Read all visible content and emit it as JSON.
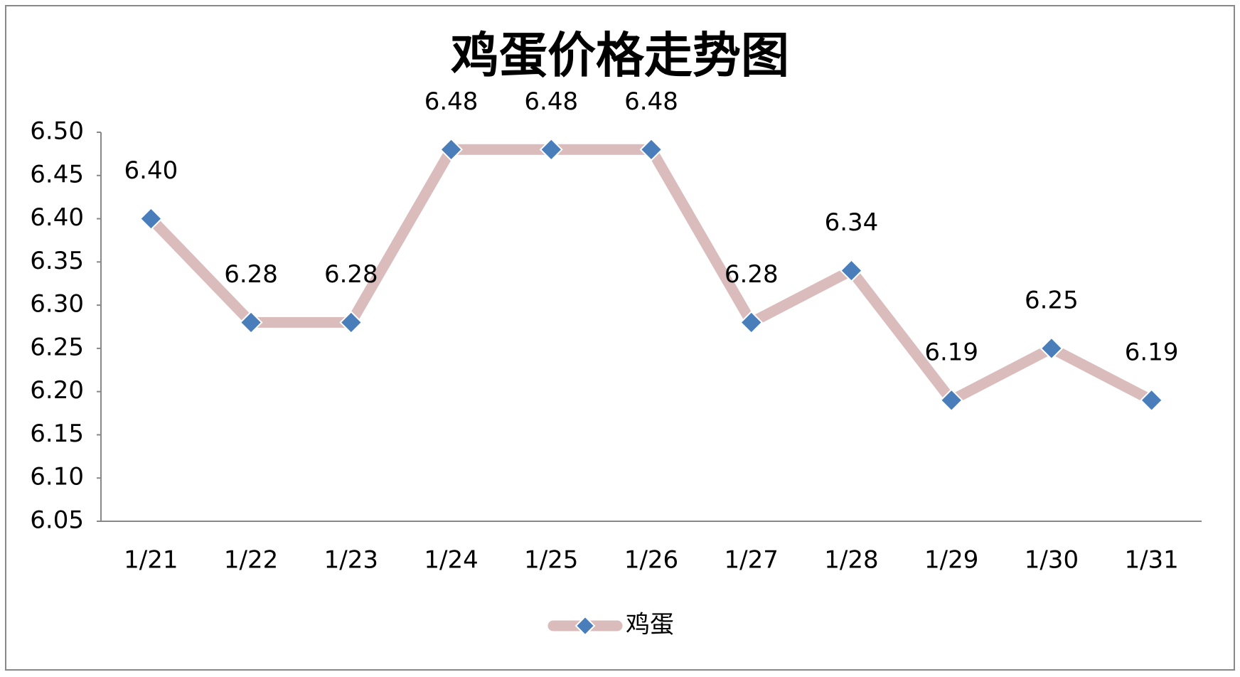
{
  "chart_data": {
    "type": "line",
    "title": "鸡蛋价格走势图",
    "categories": [
      "1/21",
      "1/22",
      "1/23",
      "1/24",
      "1/25",
      "1/26",
      "1/27",
      "1/28",
      "1/29",
      "1/30",
      "1/31"
    ],
    "series": [
      {
        "name": "鸡蛋",
        "color": "#dbbcbc",
        "marker_color": "#4a7ebb",
        "values": [
          6.4,
          6.28,
          6.28,
          6.48,
          6.48,
          6.48,
          6.28,
          6.34,
          6.19,
          6.25,
          6.19
        ],
        "value_labels": [
          "6.40",
          "6.28",
          "6.28",
          "6.48",
          "6.48",
          "6.48",
          "6.28",
          "6.34",
          "6.19",
          "6.25",
          "6.19"
        ]
      }
    ],
    "ylim": [
      6.05,
      6.5
    ],
    "yticks": [
      {
        "value": 6.05,
        "label": "6.05"
      },
      {
        "value": 6.1,
        "label": "6.10"
      },
      {
        "value": 6.15,
        "label": "6.15"
      },
      {
        "value": 6.2,
        "label": "6.20"
      },
      {
        "value": 6.25,
        "label": "6.25"
      },
      {
        "value": 6.3,
        "label": "6.30"
      },
      {
        "value": 6.35,
        "label": "6.35"
      },
      {
        "value": 6.4,
        "label": "6.40"
      },
      {
        "value": 6.45,
        "label": "6.45"
      },
      {
        "value": 6.5,
        "label": "6.50"
      }
    ],
    "grid": false,
    "legend": "bottom"
  }
}
